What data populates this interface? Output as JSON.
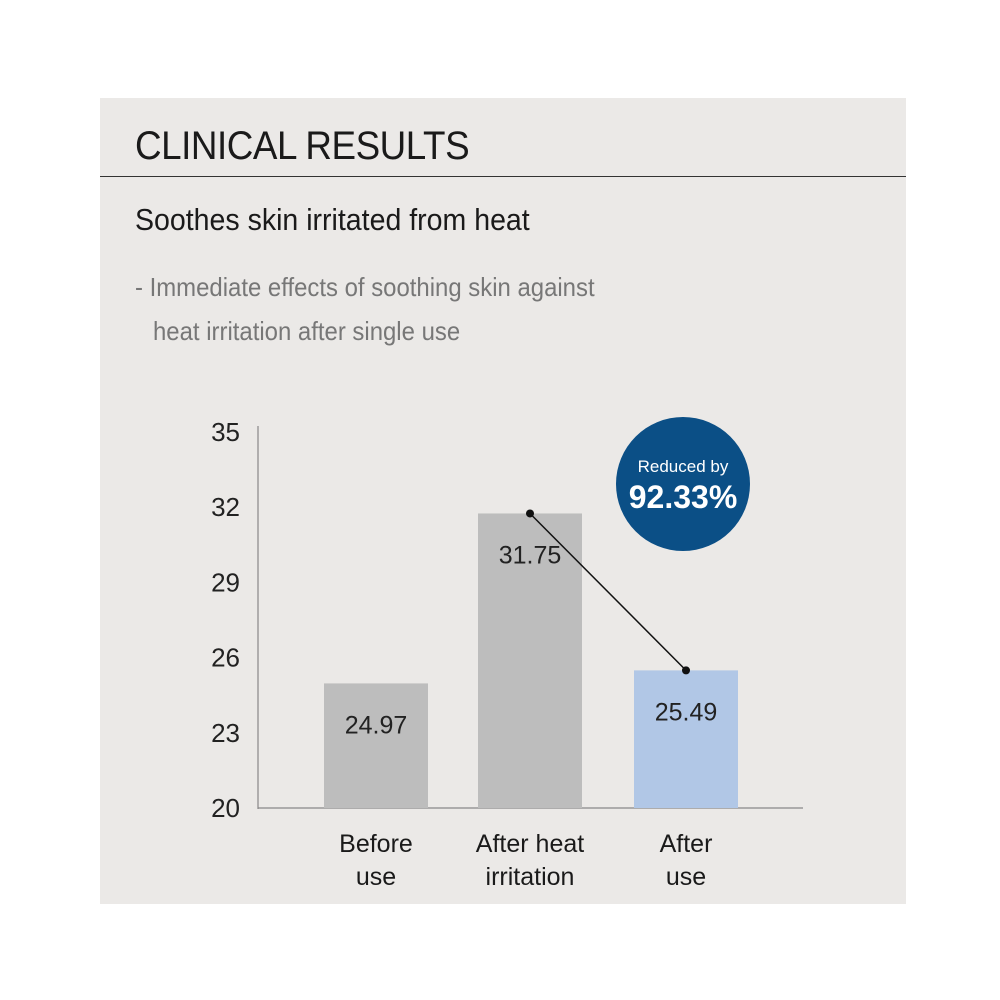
{
  "header": {
    "title": "CLINICAL RESULTS",
    "subtitle": "Soothes skin irritated from heat",
    "description_line1": "- Immediate effects of soothing skin against",
    "description_line2": "heat irritation after single use"
  },
  "colors": {
    "gray_bar": "#bdbdbd",
    "highlight_bar": "#b1c7e6",
    "badge": "#0b4f86",
    "panel": "#ebe9e7"
  },
  "chart_data": {
    "type": "bar",
    "categories": [
      [
        "Before",
        "use"
      ],
      [
        "After heat",
        "irritation"
      ],
      [
        "After",
        "use"
      ]
    ],
    "values": [
      24.97,
      31.75,
      25.49
    ],
    "value_labels": [
      "24.97",
      "31.75",
      "25.49"
    ],
    "ylim": [
      20,
      35
    ],
    "yticks": [
      "20",
      "23",
      "26",
      "29",
      "32",
      "35"
    ],
    "grid": false,
    "annotation": {
      "line1": "Reduced by",
      "line2": "92.33%"
    }
  }
}
